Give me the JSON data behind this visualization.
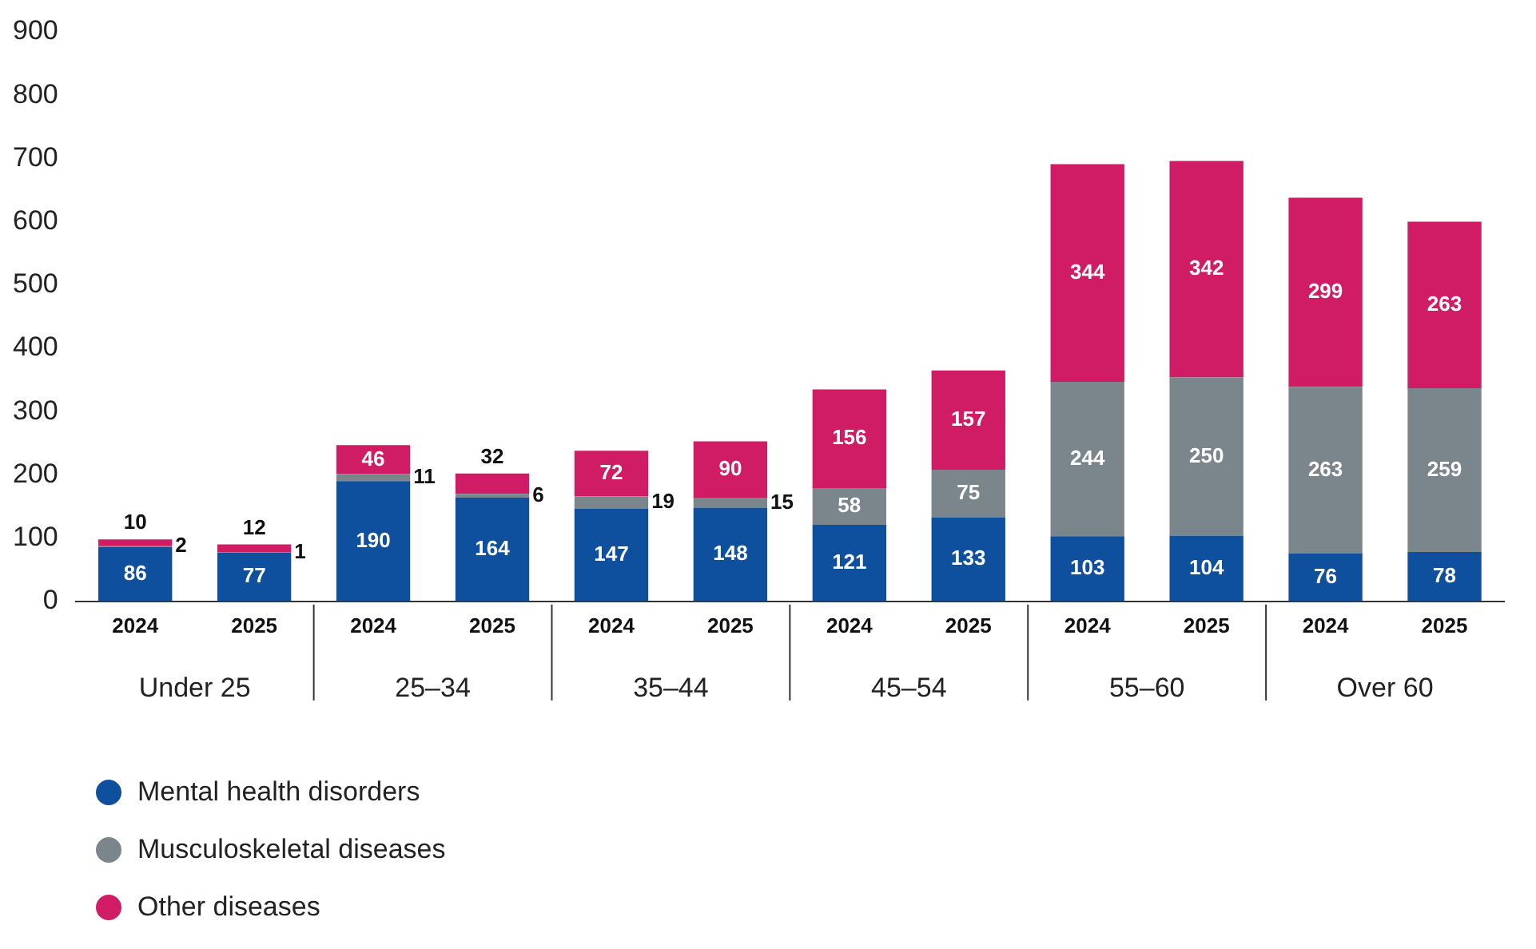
{
  "chart_data": {
    "type": "bar",
    "stacked": true,
    "categories": [
      "2024",
      "2025",
      "2024",
      "2025",
      "2024",
      "2025",
      "2024",
      "2025",
      "2024",
      "2025",
      "2024",
      "2025"
    ],
    "annotations": [
      "Under 25",
      "25–34",
      "35–44",
      "45–54",
      "55–60",
      "Over 60"
    ],
    "series": [
      {
        "name": "Mental health disorders",
        "color": "#0e4f9e",
        "values": [
          86,
          77,
          190,
          164,
          147,
          148,
          121,
          133,
          103,
          104,
          76,
          78
        ]
      },
      {
        "name": "Musculoskeletal diseases",
        "color": "#7b868c",
        "values": [
          2,
          1,
          11,
          6,
          19,
          15,
          58,
          75,
          244,
          250,
          263,
          259
        ]
      },
      {
        "name": "Other diseases",
        "color": "#d01c64",
        "values": [
          10,
          12,
          46,
          32,
          72,
          90,
          156,
          157,
          344,
          342,
          299,
          263
        ]
      }
    ],
    "ylim": [
      0,
      900
    ],
    "yticks": [
      0,
      100,
      200,
      300,
      400,
      500,
      600,
      700,
      800,
      900
    ],
    "grid": false,
    "data_labels": true,
    "legend": "bottom left"
  }
}
